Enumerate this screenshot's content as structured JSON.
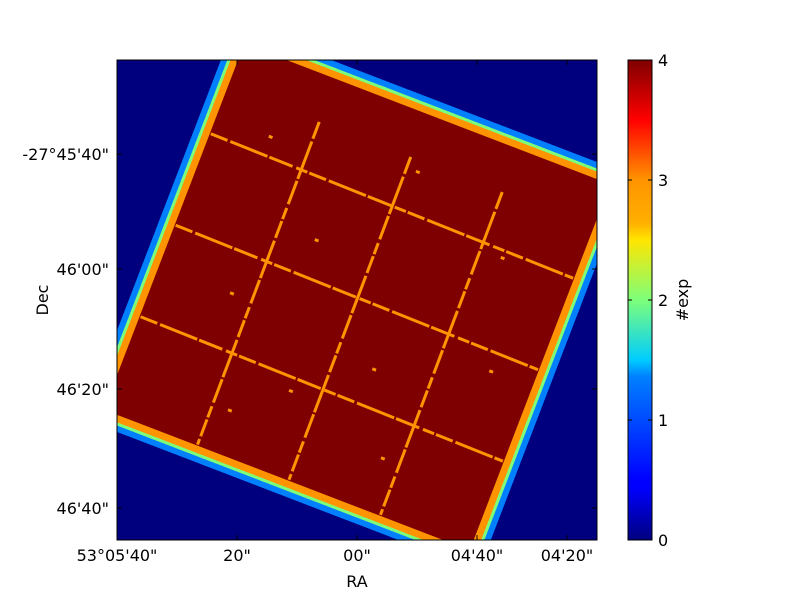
{
  "chart_data": {
    "type": "heatmap",
    "title": "",
    "xlabel": "RA",
    "ylabel": "Dec",
    "x_ticks": [
      "53°05'40\"",
      "20\"",
      "00\"",
      "04'40\"",
      "04'20\""
    ],
    "y_ticks": [
      "-27°45'40\"",
      "46'00\"",
      "46'20\"",
      "46'40\""
    ],
    "x_range_arcsec": [
      -42,
      42
    ],
    "y_range_arcsec": [
      -42,
      42
    ],
    "colorbar": {
      "label": "#exp",
      "min": 0,
      "max": 4,
      "ticks": [
        "0",
        "1",
        "2",
        "3",
        "4"
      ],
      "colormap": "jet"
    },
    "footprint": {
      "description_values": {
        "background_exposures": 0,
        "edge_band_exposures": [
          1,
          2,
          3
        ],
        "interior_exposures": 4,
        "chip_gap_exposures": 3
      },
      "rotation_deg": 21
    },
    "colors": {
      "background": "#00007f",
      "exp1": "#0080ff",
      "exp2": "#7dff7a",
      "exp3": "#ff9400",
      "exp4": "#7f0000"
    }
  }
}
